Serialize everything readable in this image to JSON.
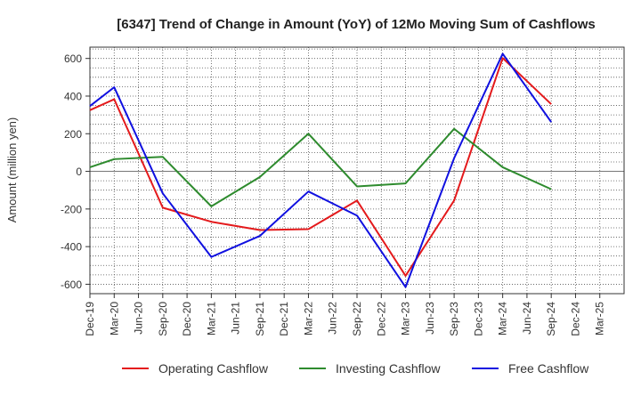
{
  "chart_data": {
    "type": "line",
    "title": "[6347]  Trend of Change in Amount (YoY) of 12Mo Moving Sum of Cashflows",
    "xlabel": "",
    "ylabel": "Amount (million yen)",
    "ylim": [
      -650,
      660
    ],
    "yticks": [
      -600,
      -400,
      -200,
      0,
      200,
      400,
      600
    ],
    "categories": [
      "Dec-19",
      "Mar-20",
      "Jun-20",
      "Sep-20",
      "Dec-20",
      "Mar-21",
      "Jun-21",
      "Sep-21",
      "Dec-21",
      "Mar-22",
      "Jun-22",
      "Sep-22",
      "Dec-22",
      "Mar-23",
      "Jun-23",
      "Sep-23",
      "Dec-23",
      "Mar-24",
      "Jun-24",
      "Sep-24",
      "Dec-24",
      "Mar-25"
    ],
    "grid": true,
    "legend_position": "bottom",
    "series": [
      {
        "name": "Operating Cashflow",
        "color": "#e41a1c",
        "values": [
          325,
          383,
          null,
          -193,
          null,
          -268,
          null,
          -312,
          null,
          -307,
          null,
          -155,
          null,
          -555,
          null,
          -155,
          null,
          602,
          null,
          357,
          null,
          null
        ]
      },
      {
        "name": "Investing Cashflow",
        "color": "#2e8b2e",
        "values": [
          22,
          65,
          null,
          77,
          null,
          -186,
          null,
          -30,
          null,
          200,
          null,
          -80,
          null,
          -64,
          null,
          226,
          null,
          22,
          null,
          -95,
          null,
          null
        ]
      },
      {
        "name": "Free Cashflow",
        "color": "#1010e0",
        "values": [
          347,
          447,
          null,
          -117,
          null,
          -455,
          null,
          -343,
          null,
          -107,
          null,
          -235,
          null,
          -615,
          null,
          70,
          null,
          625,
          null,
          262,
          null,
          null
        ]
      }
    ]
  }
}
